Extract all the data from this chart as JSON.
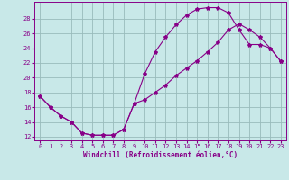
{
  "xlabel": "Windchill (Refroidissement éolien,°C)",
  "bg_color": "#c8e8e8",
  "line_color": "#880088",
  "grid_color": "#99bbbb",
  "xlim": [
    -0.5,
    23.5
  ],
  "ylim": [
    11.5,
    30.3
  ],
  "xticks": [
    0,
    1,
    2,
    3,
    4,
    5,
    6,
    7,
    8,
    9,
    10,
    11,
    12,
    13,
    14,
    15,
    16,
    17,
    18,
    19,
    20,
    21,
    22,
    23
  ],
  "yticks": [
    12,
    14,
    16,
    18,
    20,
    22,
    24,
    26,
    28
  ],
  "line1_x": [
    0,
    1,
    2,
    3,
    4,
    5,
    6,
    7,
    8,
    9,
    10,
    11,
    12,
    13,
    14,
    15,
    16,
    17,
    18,
    19,
    20,
    21,
    22,
    23
  ],
  "line1_y": [
    17.5,
    16.0,
    14.8,
    14.0,
    12.5,
    12.2,
    12.2,
    12.2,
    13.0,
    16.5,
    20.5,
    23.5,
    25.5,
    27.2,
    28.5,
    29.3,
    29.5,
    29.5,
    28.8,
    26.5,
    24.5,
    24.5,
    24.0,
    22.2
  ],
  "line2_x": [
    0,
    1,
    2,
    3,
    4,
    5,
    6,
    7,
    8,
    9,
    10,
    11,
    12,
    13,
    14,
    15,
    16,
    17,
    18,
    19,
    20,
    21,
    22,
    23
  ],
  "line2_y": [
    17.5,
    16.0,
    14.8,
    14.0,
    12.5,
    12.2,
    12.2,
    12.2,
    13.0,
    16.5,
    17.0,
    18.0,
    19.0,
    20.3,
    21.3,
    22.3,
    23.5,
    24.8,
    26.5,
    27.3,
    26.5,
    25.5,
    24.0,
    22.2
  ]
}
